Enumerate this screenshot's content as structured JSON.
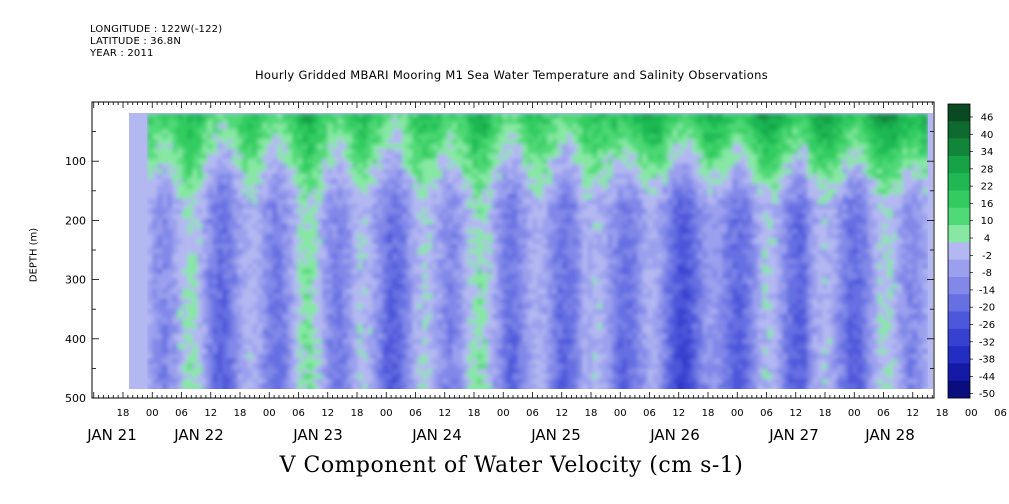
{
  "header": {
    "longitude": "LONGITUDE : 122W(-122)",
    "latitude": "LATITUDE : 36.8N",
    "year": "YEAR : 2011"
  },
  "chart_data": {
    "type": "heatmap",
    "title": "Hourly Gridded MBARI Mooring M1 Sea Water Temperature and Salinity Observations",
    "xlabel": "V Component of Water Velocity (cm s-1)",
    "ylabel": "DEPTH (m)",
    "y_reversed": true,
    "ylim": [
      500,
      0
    ],
    "y_ticks": [
      "100",
      "200",
      "300",
      "400",
      "500"
    ],
    "x_hour_labels": [
      "18",
      "00",
      "06",
      "12",
      "18",
      "00",
      "06",
      "12",
      "18",
      "00",
      "06",
      "12",
      "18",
      "00",
      "06",
      "12",
      "18",
      "00",
      "06",
      "12",
      "18",
      "00",
      "06",
      "12",
      "18",
      "00",
      "06",
      "12",
      "18",
      "00",
      "06",
      "12"
    ],
    "x_date_labels": [
      "JAN 21",
      "JAN 22",
      "JAN 23",
      "JAN 24",
      "JAN 25",
      "JAN 26",
      "JAN 27",
      "JAN 28"
    ],
    "colorbar_levels": [
      "46",
      "40",
      "34",
      "28",
      "22",
      "16",
      "10",
      "4",
      "-2",
      "-8",
      "-14",
      "-20",
      "-26",
      "-32",
      "-38",
      "-44",
      "-50"
    ],
    "colorbar_colors": [
      "#0a4a22",
      "#0e6a2e",
      "#11853a",
      "#16a246",
      "#1fb852",
      "#32cc60",
      "#4fd977",
      "#86e8a3",
      "#b3b8f2",
      "#9ba0ee",
      "#8188e8",
      "#6670e2",
      "#4d57da",
      "#3741cf",
      "#232dc1",
      "#1419a6",
      "#0a0d7d"
    ],
    "data_window": {
      "start": "JAN 21 23:00",
      "end": "JAN 28 14:00",
      "depth_top_m": 20,
      "depth_bottom_m": 490
    },
    "pattern": "surface layer (20-150 m) mostly northward/positive (green), deeper water alternating bands of negative (blue/purple) and positive (green) values"
  }
}
